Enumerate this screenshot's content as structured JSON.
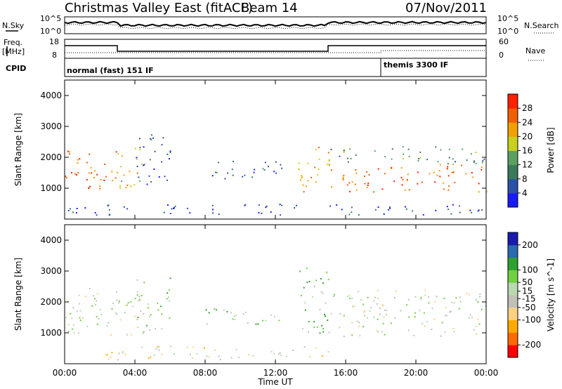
{
  "title": {
    "station": "Christmas Valley East (fitACF)",
    "beam": "Beam 14",
    "date": "07/Nov/2011"
  },
  "header": {
    "nsky_label": "N.Sky",
    "nsearch_label": "N.Search",
    "freq_label_1": "Freq.",
    "freq_label_2": "[MHz]",
    "nave_label": "Nave",
    "cpid_label": "CPID",
    "noise_left_ticks": [
      "10^5",
      "10^0"
    ],
    "noise_right_ticks": [
      "10^5",
      "10^0"
    ],
    "freq_ticks": [
      "18",
      "8"
    ],
    "nave_ticks": [
      "60",
      "0"
    ],
    "cpid_segments": [
      {
        "label": "normal (fast) 151 IF",
        "start": "00:00",
        "end": "18:00"
      },
      {
        "label": "themis 3300 IF",
        "start": "18:00",
        "end": "24:00"
      }
    ]
  },
  "colors": {
    "power": [
      "#1a1aff",
      "#2a52a8",
      "#3a7a5a",
      "#5aa060",
      "#c8d020",
      "#f0a000",
      "#f06000",
      "#ff2000"
    ],
    "velocity": [
      "#ff0000",
      "#ff6a00",
      "#ffaa00",
      "#ffd080",
      "#c0c0b8",
      "#b8d8b0",
      "#70d040",
      "#30a030",
      "#2a6ab0",
      "#1a1ab0"
    ]
  },
  "chart_data": [
    {
      "type": "heatmap",
      "name": "power-panel",
      "ylabel": "Slant Range [km]",
      "xlabel": "",
      "x_ticks": [
        "00:00",
        "04:00",
        "08:00",
        "12:00",
        "16:00",
        "20:00",
        "00:00"
      ],
      "y_ticks": [
        1000,
        2000,
        3000,
        4000
      ],
      "ylim": [
        0,
        4500
      ],
      "xlim_hours": [
        0,
        24
      ],
      "colorbar": {
        "label": "Power [dB]",
        "ticks": [
          4,
          8,
          12,
          16,
          20,
          24,
          28
        ],
        "range": [
          0,
          32
        ]
      },
      "features": [
        {
          "hours": [
            0,
            3
          ],
          "range_km": [
            900,
            2300
          ],
          "power_db": 26
        },
        {
          "hours": [
            3,
            4.5
          ],
          "range_km": [
            1000,
            2500
          ],
          "power_db": 20
        },
        {
          "hours": [
            4,
            6
          ],
          "range_km": [
            1100,
            2800
          ],
          "power_db": 6
        },
        {
          "hours": [
            8,
            12.5
          ],
          "range_km": [
            1300,
            1900
          ],
          "power_db": 8
        },
        {
          "hours": [
            13.3,
            15
          ],
          "range_km": [
            900,
            2400
          ],
          "power_db": 22
        },
        {
          "hours": [
            15,
            24
          ],
          "range_km": [
            900,
            1800
          ],
          "power_db": 26
        },
        {
          "hours": [
            15,
            24
          ],
          "range_km": [
            1800,
            2400
          ],
          "power_db": 12
        },
        {
          "hours": [
            0,
            24
          ],
          "range_km": [
            150,
            500
          ],
          "power_db": 6
        }
      ]
    },
    {
      "type": "heatmap",
      "name": "velocity-panel",
      "ylabel": "Slant Range [km]",
      "xlabel": "Time UT",
      "x_ticks": [
        "00:00",
        "04:00",
        "08:00",
        "12:00",
        "16:00",
        "20:00",
        "00:00"
      ],
      "y_ticks": [
        1000,
        2000,
        3000,
        4000
      ],
      "ylim": [
        0,
        4500
      ],
      "xlim_hours": [
        0,
        24
      ],
      "colorbar": {
        "label": "Velocity [m s^-1]",
        "ticks": [
          200,
          100,
          50,
          15,
          -15,
          -50,
          -100,
          -200
        ],
        "range": [
          -250,
          250
        ]
      },
      "features": [
        {
          "hours": [
            0,
            4.5
          ],
          "range_km": [
            900,
            2500
          ],
          "velocity_ms": 0
        },
        {
          "hours": [
            4,
            6
          ],
          "range_km": [
            1100,
            2800
          ],
          "velocity_ms": 40
        },
        {
          "hours": [
            8,
            12.5
          ],
          "range_km": [
            1300,
            1900
          ],
          "velocity_ms": 50
        },
        {
          "hours": [
            13.3,
            15
          ],
          "range_km": [
            900,
            3200
          ],
          "velocity_ms": 60
        },
        {
          "hours": [
            15,
            24
          ],
          "range_km": [
            900,
            2400
          ],
          "velocity_ms": 0
        },
        {
          "hours": [
            2,
            15
          ],
          "range_km": [
            150,
            600
          ],
          "velocity_ms": -40
        }
      ]
    }
  ],
  "footer": {
    "xlabel": "Time UT"
  }
}
